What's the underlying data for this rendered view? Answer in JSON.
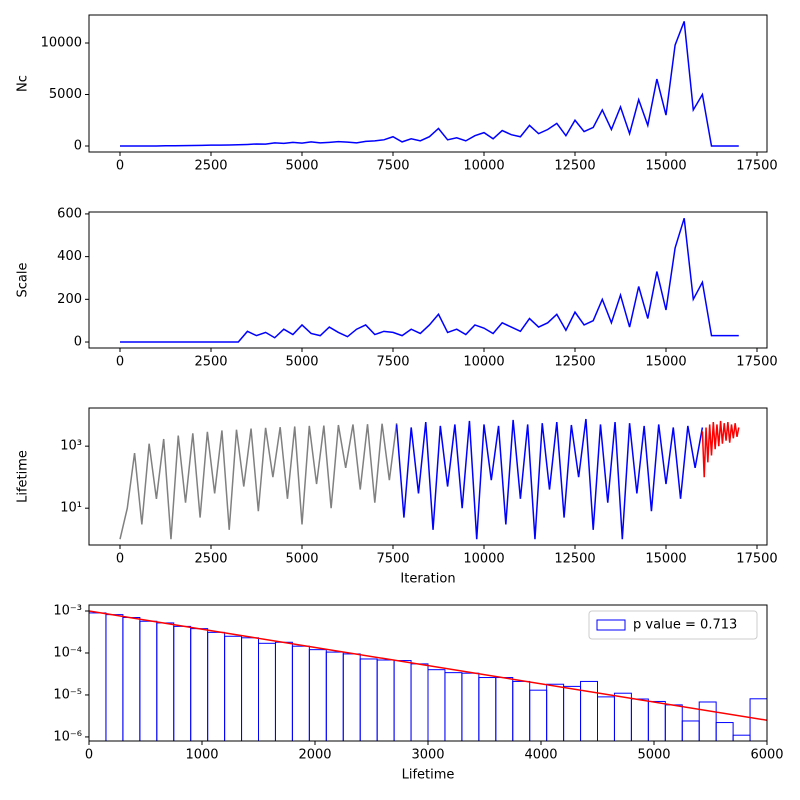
{
  "chart_data": [
    {
      "type": "line",
      "ylabel": "Nc",
      "xlim": [
        -852,
        17775
      ],
      "xticks": [
        0,
        2500,
        5000,
        7500,
        10000,
        12500,
        15000,
        17500
      ],
      "ylim": [
        -583,
        12718
      ],
      "yticks": [
        0,
        5000,
        10000
      ],
      "x": [
        0,
        250,
        500,
        750,
        1000,
        1250,
        1500,
        1750,
        2000,
        2250,
        2500,
        2750,
        3000,
        3250,
        3500,
        3750,
        4000,
        4250,
        4500,
        4750,
        5000,
        5250,
        5500,
        5750,
        6000,
        6250,
        6500,
        6750,
        7000,
        7250,
        7500,
        7750,
        8000,
        8250,
        8500,
        8750,
        9000,
        9250,
        9500,
        9750,
        10000,
        10250,
        10500,
        10750,
        11000,
        11250,
        11500,
        11750,
        12000,
        12250,
        12500,
        12750,
        13000,
        13250,
        13500,
        13750,
        14000,
        14250,
        14500,
        14750,
        15000,
        15250,
        15500,
        15750,
        16000,
        16250,
        16500,
        16750,
        17000
      ],
      "series": [
        {
          "color": "#0000ff",
          "values": [
            0,
            0,
            0,
            0,
            0,
            20,
            30,
            40,
            50,
            60,
            80,
            90,
            100,
            120,
            150,
            200,
            180,
            300,
            250,
            350,
            280,
            400,
            300,
            350,
            420,
            380,
            300,
            450,
            500,
            600,
            900,
            400,
            700,
            500,
            900,
            1700,
            600,
            800,
            500,
            1000,
            1300,
            700,
            1500,
            1100,
            900,
            2000,
            1200,
            1600,
            2200,
            1000,
            2500,
            1400,
            1800,
            3500,
            1600,
            3800,
            1200,
            4500,
            2000,
            6500,
            3000,
            9800,
            12100,
            3500,
            5000,
            0,
            0,
            0,
            0
          ]
        }
      ]
    },
    {
      "type": "line",
      "ylabel": "Scale",
      "xlim": [
        -852,
        17775
      ],
      "xticks": [
        0,
        2500,
        5000,
        7500,
        10000,
        12500,
        15000,
        17500
      ],
      "ylim": [
        -28,
        609
      ],
      "yticks": [
        0,
        200,
        400,
        600
      ],
      "x": [
        0,
        250,
        500,
        750,
        1000,
        1250,
        1500,
        1750,
        2000,
        2250,
        2500,
        2750,
        3000,
        3250,
        3500,
        3750,
        4000,
        4250,
        4500,
        4750,
        5000,
        5250,
        5500,
        5750,
        6000,
        6250,
        6500,
        6750,
        7000,
        7250,
        7500,
        7750,
        8000,
        8250,
        8500,
        8750,
        9000,
        9250,
        9500,
        9750,
        10000,
        10250,
        10500,
        10750,
        11000,
        11250,
        11500,
        11750,
        12000,
        12250,
        12500,
        12750,
        13000,
        13250,
        13500,
        13750,
        14000,
        14250,
        14500,
        14750,
        15000,
        15250,
        15500,
        15750,
        16000,
        16250,
        16500,
        16750,
        17000
      ],
      "series": [
        {
          "color": "#0000ff",
          "values": [
            0,
            0,
            0,
            0,
            0,
            0,
            0,
            0,
            0,
            0,
            0,
            0,
            0,
            0,
            50,
            30,
            45,
            20,
            60,
            35,
            80,
            40,
            30,
            70,
            45,
            25,
            60,
            80,
            35,
            50,
            45,
            30,
            60,
            40,
            80,
            130,
            45,
            60,
            35,
            80,
            65,
            40,
            90,
            70,
            50,
            110,
            70,
            90,
            130,
            55,
            140,
            80,
            100,
            200,
            90,
            220,
            70,
            260,
            110,
            330,
            150,
            440,
            580,
            200,
            280,
            30,
            30,
            30,
            30
          ]
        }
      ]
    },
    {
      "type": "line",
      "ylabel": "Lifetime",
      "xlabel": "Iteration",
      "yscale": "log",
      "xlim": [
        -852,
        17775
      ],
      "xticks": [
        0,
        2500,
        5000,
        7500,
        10000,
        12500,
        15000,
        17500
      ],
      "ylim": [
        0.65,
        17000
      ],
      "yticks": [
        {
          "value": 10,
          "label": "10¹"
        },
        {
          "value": 1000,
          "label": "10³"
        }
      ],
      "series": [
        {
          "color": "#808080",
          "x": [
            0,
            200,
            400,
            600,
            800,
            1000,
            1200,
            1400,
            1600,
            1800,
            2000,
            2200,
            2400,
            2600,
            2800,
            3000,
            3200,
            3400,
            3600,
            3800,
            4000,
            4200,
            4400,
            4600,
            4800,
            5000,
            5200,
            5400,
            5600,
            5800,
            6000,
            6200,
            6400,
            6600,
            6800,
            7000,
            7200,
            7400,
            7600
          ],
          "values": [
            1,
            10,
            600,
            3,
            1200,
            20,
            1700,
            1,
            2200,
            15,
            2600,
            5,
            2900,
            30,
            3200,
            2,
            3400,
            50,
            3700,
            8,
            3900,
            100,
            4100,
            20,
            4300,
            3,
            4500,
            60,
            4600,
            10,
            4800,
            200,
            5000,
            40,
            5100,
            15,
            5300,
            80,
            5500
          ]
        },
        {
          "color": "#0000ff",
          "x": [
            7600,
            7800,
            8000,
            8200,
            8400,
            8600,
            8800,
            9000,
            9200,
            9400,
            9600,
            9800,
            10000,
            10200,
            10400,
            10600,
            10800,
            11000,
            11200,
            11400,
            11600,
            11800,
            12000,
            12200,
            12400,
            12600,
            12800,
            13000,
            13200,
            13400,
            13600,
            13800,
            14000,
            14200,
            14400,
            14600,
            14800,
            15000,
            15200,
            15400,
            15600,
            15800,
            16000
          ],
          "values": [
            5000,
            5,
            4000,
            30,
            6000,
            2,
            4500,
            50,
            5000,
            10,
            6500,
            1,
            5000,
            80,
            4500,
            3,
            7000,
            20,
            5000,
            1,
            5500,
            40,
            6000,
            5,
            4800,
            100,
            7500,
            2,
            5000,
            15,
            6000,
            1,
            5500,
            30,
            4500,
            8,
            5000,
            60,
            4000,
            20,
            4500,
            200,
            4000
          ]
        },
        {
          "color": "#ff0000",
          "x": [
            16000,
            16050,
            16100,
            16150,
            16200,
            16250,
            16300,
            16350,
            16400,
            16450,
            16500,
            16550,
            16600,
            16650,
            16700,
            16750,
            16800,
            16850,
            16900,
            16950,
            17000
          ],
          "values": [
            3000,
            100,
            4000,
            300,
            5000,
            500,
            6000,
            800,
            5000,
            1000,
            6500,
            1200,
            5500,
            1500,
            6000,
            1300,
            5000,
            1800,
            5500,
            2000,
            4000
          ]
        }
      ]
    },
    {
      "type": "histogram",
      "xlabel": "Lifetime",
      "yscale": "log",
      "legend": "upper right",
      "xlim": [
        0,
        6000
      ],
      "xticks": [
        0,
        1000,
        2000,
        3000,
        4000,
        5000,
        6000
      ],
      "ylim": [
        8e-07,
        0.00139
      ],
      "yticks": [
        {
          "value": 1e-06,
          "label": "10⁻⁶"
        },
        {
          "value": 1e-05,
          "label": "10⁻⁵"
        },
        {
          "value": 0.0001,
          "label": "10⁻⁴"
        },
        {
          "value": 0.001,
          "label": "10⁻³"
        }
      ],
      "name": "p value = 0.713",
      "color": "#0000ff",
      "bins": [
        0,
        150,
        300,
        450,
        600,
        750,
        900,
        1050,
        1200,
        1350,
        1500,
        1650,
        1800,
        1950,
        2100,
        2250,
        2400,
        2550,
        2700,
        2850,
        3000,
        3150,
        3300,
        3450,
        3600,
        3750,
        3900,
        4050,
        4200,
        4350,
        4500,
        4650,
        4800,
        4950,
        5100,
        5250,
        5400,
        5550,
        5700,
        5850,
        6000
      ],
      "values": [
        0.0009,
        0.00082,
        0.0007,
        0.00057,
        0.00052,
        0.00043,
        0.00038,
        0.00031,
        0.00025,
        0.00023,
        0.00017,
        0.00018,
        0.000145,
        0.00012,
        0.000105,
        9.5e-05,
        7.2e-05,
        6.8e-05,
        6.6e-05,
        5.5e-05,
        4e-05,
        3.4e-05,
        3.3e-05,
        2.6e-05,
        2.6e-05,
        2.1e-05,
        1.3e-05,
        1.8e-05,
        1.6e-05,
        2.1e-05,
        9e-06,
        1.1e-05,
        8e-06,
        7e-06,
        5.8e-06,
        2.4e-06,
        6.8e-06,
        2.2e-06,
        1.1e-06,
        8.1e-06
      ],
      "line": {
        "color": "#ff0000",
        "x": [
          0,
          6000
        ],
        "values": [
          0.001,
          2.5e-06
        ]
      }
    }
  ]
}
